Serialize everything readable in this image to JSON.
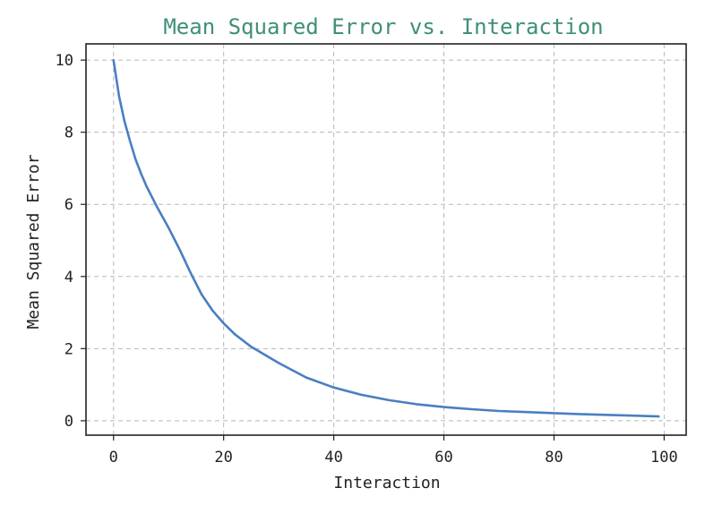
{
  "colors": {
    "title": "#3f8f7a",
    "series": "#4a7fc1",
    "grid": "#b8b8b8",
    "axis": "#222222"
  },
  "chart_data": {
    "type": "line",
    "title": "Mean Squared Error vs. Interaction",
    "xlabel": "Interaction",
    "ylabel": "Mean Squared Error",
    "xlim": [
      -5,
      104
    ],
    "ylim": [
      -0.4,
      10.45
    ],
    "xticks": [
      0,
      20,
      40,
      60,
      80,
      100
    ],
    "yticks": [
      0,
      2,
      4,
      6,
      8,
      10
    ],
    "xtick_labels": [
      "0",
      "20",
      "40",
      "60",
      "80",
      "100"
    ],
    "ytick_labels": [
      "0",
      "2",
      "4",
      "6",
      "8",
      "10"
    ],
    "grid": true,
    "grid_style": "dashed",
    "legend": "none",
    "series": [
      {
        "x": [
          0,
          1,
          2,
          3,
          4,
          5,
          6,
          8,
          10,
          12,
          14,
          16,
          18,
          20,
          22,
          25,
          30,
          35,
          40,
          45,
          50,
          55,
          60,
          65,
          70,
          75,
          80,
          85,
          90,
          95,
          99
        ],
        "y": [
          10.0,
          9.0,
          8.3,
          7.75,
          7.25,
          6.85,
          6.5,
          5.9,
          5.35,
          4.75,
          4.1,
          3.5,
          3.05,
          2.7,
          2.4,
          2.05,
          1.6,
          1.2,
          0.92,
          0.72,
          0.57,
          0.46,
          0.38,
          0.32,
          0.27,
          0.24,
          0.21,
          0.18,
          0.16,
          0.14,
          0.12
        ]
      }
    ]
  }
}
